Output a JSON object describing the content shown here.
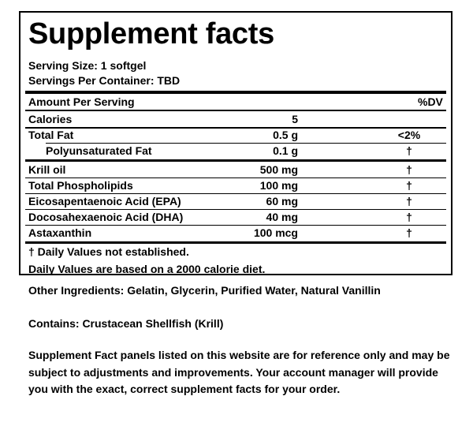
{
  "title": "Supplement facts",
  "serving_size": "Serving Size: 1 softgel",
  "servings_per_container": "Servings Per Container: TBD",
  "header": {
    "amount_per_serving": "Amount Per Serving",
    "dv": "%DV"
  },
  "rows": [
    {
      "name": "Calories",
      "amount": "5",
      "dv": ""
    },
    {
      "name": "Total Fat",
      "amount": "0.5 g",
      "dv": "<2%"
    },
    {
      "name": "Polyunsaturated Fat",
      "amount": "0.1 g",
      "dv": "†"
    },
    {
      "name": "Krill oil",
      "amount": "500 mg",
      "dv": "†"
    },
    {
      "name": "Total Phospholipids",
      "amount": "100 mg",
      "dv": "†"
    },
    {
      "name": "Eicosapentaenoic Acid (EPA)",
      "amount": "60 mg",
      "dv": "†"
    },
    {
      "name": "Docosahexaenoic Acid (DHA)",
      "amount": "40 mg",
      "dv": "†"
    },
    {
      "name": "Astaxanthin",
      "amount": "100 mcg",
      "dv": "†"
    }
  ],
  "footnotes": [
    "† Daily Values not established.",
    "Daily Values are based on a 2000 calorie diet."
  ],
  "other_ingredients": "Other Ingredients: Gelatin, Glycerin, Purified Water, Natural Vanillin",
  "contains": "Contains: Crustacean Shellfish (Krill)",
  "disclaimer": "Supplement Fact panels listed on this website are for reference only and may be subject to adjustments and improvements. Your account manager will provide you with the exact, correct supplement facts for your order."
}
